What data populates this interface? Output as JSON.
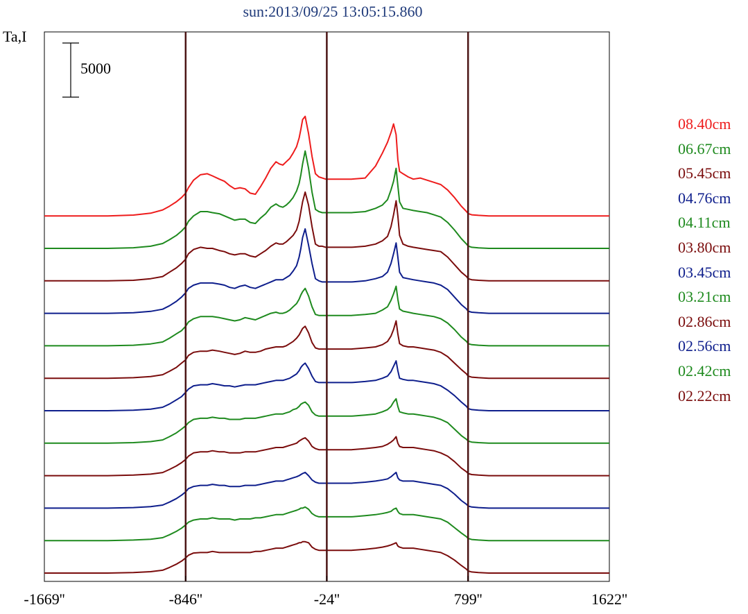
{
  "title": "sun:2013/09/25 13:05:15.860",
  "colors": {
    "red": "#ee1c1c",
    "green": "#1e8a1e",
    "maroon": "#7a0c0c",
    "blue": "#0e1e8c",
    "frame": "#000000",
    "limb": "#4a1414"
  },
  "chart_data": {
    "type": "line",
    "title": "sun:2013/09/25 13:05:15.860",
    "ylabel": "Ta,I",
    "xlabel": "",
    "scale_bar": {
      "label": "5000",
      "value": 5000
    },
    "x_ticks": [
      {
        "value": -1669,
        "label": "-1669''"
      },
      {
        "value": -846,
        "label": "-846''"
      },
      {
        "value": -24,
        "label": "-24''"
      },
      {
        "value": 799,
        "label": "799''"
      },
      {
        "value": 1622,
        "label": "1622''"
      }
    ],
    "xlim": [
      -1669,
      1622
    ],
    "vertical_lines": [
      -846,
      -24,
      799
    ],
    "grid": false,
    "legend_position": "right",
    "x": [
      -1669,
      -1500,
      -1300,
      -1150,
      -1050,
      -980,
      -940,
      -900,
      -870,
      -846,
      -830,
      -800,
      -760,
      -720,
      -690,
      -650,
      -620,
      -590,
      -560,
      -530,
      -500,
      -470,
      -440,
      -410,
      -380,
      -350,
      -320,
      -300,
      -280,
      -260,
      -240,
      -220,
      -200,
      -185,
      -175,
      -165,
      -150,
      -130,
      -110,
      -90,
      -70,
      -50,
      -30,
      -24,
      -10,
      50,
      120,
      200,
      260,
      300,
      330,
      350,
      365,
      380,
      390,
      400,
      420,
      450,
      480,
      520,
      560,
      600,
      640,
      680,
      720,
      760,
      790,
      799,
      820,
      860,
      920,
      1000,
      1100,
      1200,
      1300,
      1400,
      1500,
      1622
    ],
    "series": [
      {
        "name": "08.40cm",
        "color": "#ee1c1c",
        "values": [
          0,
          0,
          0,
          80,
          250,
          550,
          900,
          1300,
          1700,
          2100,
          2600,
          3300,
          3800,
          3900,
          3700,
          3400,
          3200,
          2800,
          2500,
          2600,
          2500,
          2100,
          2000,
          2700,
          3500,
          4400,
          5000,
          4800,
          4700,
          5000,
          5300,
          5800,
          6400,
          7200,
          8000,
          8900,
          9200,
          7600,
          5500,
          3900,
          3600,
          3500,
          3400,
          3400,
          3400,
          3400,
          3400,
          3500,
          4600,
          5800,
          6800,
          7700,
          8500,
          7500,
          5200,
          4100,
          3900,
          3600,
          3400,
          3500,
          3300,
          3100,
          2900,
          2400,
          1700,
          900,
          400,
          220,
          100,
          50,
          0,
          0,
          0,
          0,
          0,
          0,
          0,
          0
        ],
        "offset": 11
      },
      {
        "name": "06.67cm",
        "color": "#1e8a1e",
        "values": [
          0,
          0,
          0,
          60,
          200,
          450,
          800,
          1200,
          1600,
          2000,
          2500,
          3000,
          3400,
          3400,
          3300,
          3200,
          3000,
          2800,
          2600,
          2700,
          2700,
          2400,
          2300,
          2800,
          3200,
          3800,
          4100,
          3900,
          3800,
          4000,
          4300,
          4700,
          5300,
          6000,
          6800,
          7800,
          9000,
          7400,
          5200,
          3600,
          3400,
          3300,
          3300,
          3300,
          3300,
          3300,
          3300,
          3400,
          3700,
          4000,
          4500,
          5400,
          6200,
          7400,
          5800,
          4300,
          3700,
          3600,
          3500,
          3400,
          3300,
          3100,
          2900,
          2400,
          1700,
          900,
          400,
          220,
          100,
          50,
          0,
          0,
          0,
          0,
          0,
          0,
          0,
          0
        ],
        "offset": 10
      },
      {
        "name": "05.45cm",
        "color": "#7a0c0c",
        "values": [
          0,
          0,
          0,
          50,
          200,
          400,
          800,
          1200,
          1600,
          2000,
          2500,
          2900,
          3100,
          3000,
          3000,
          2800,
          2700,
          2500,
          2400,
          2500,
          2500,
          2300,
          2200,
          2500,
          2800,
          3200,
          3500,
          3400,
          3400,
          3600,
          3900,
          4200,
          4700,
          5500,
          6400,
          7300,
          8200,
          7000,
          5000,
          3400,
          3200,
          3200,
          3100,
          3100,
          3100,
          3100,
          3100,
          3200,
          3400,
          3700,
          4100,
          5000,
          6100,
          7400,
          6000,
          4200,
          3400,
          3200,
          3100,
          3000,
          2900,
          2800,
          2700,
          2200,
          1500,
          800,
          400,
          200,
          100,
          50,
          0,
          0,
          0,
          0,
          0,
          0,
          0,
          0
        ],
        "offset": 9
      },
      {
        "name": "04.76cm",
        "color": "#0e1e8c",
        "values": [
          0,
          0,
          0,
          50,
          180,
          380,
          700,
          1100,
          1500,
          1900,
          2300,
          2600,
          2800,
          2800,
          2800,
          2700,
          2600,
          2400,
          2300,
          2500,
          2600,
          2400,
          2300,
          2500,
          2700,
          2900,
          3100,
          3100,
          3100,
          3300,
          3500,
          3900,
          4400,
          5200,
          6000,
          7000,
          7800,
          6300,
          4600,
          3200,
          3000,
          2900,
          2900,
          2900,
          2900,
          2900,
          2900,
          3000,
          3200,
          3400,
          3800,
          4600,
          5500,
          6500,
          5200,
          3800,
          3300,
          3200,
          3100,
          3000,
          2900,
          2800,
          2600,
          2200,
          1500,
          800,
          400,
          200,
          100,
          50,
          0,
          0,
          0,
          0,
          0,
          0,
          0,
          0
        ],
        "offset": 8
      },
      {
        "name": "04.11cm",
        "color": "#1e8a1e",
        "values": [
          0,
          0,
          0,
          50,
          170,
          350,
          700,
          1100,
          1400,
          1800,
          2200,
          2500,
          2700,
          2700,
          2700,
          2600,
          2500,
          2400,
          2300,
          2400,
          2600,
          2500,
          2400,
          2600,
          2800,
          3000,
          3100,
          3000,
          3000,
          3100,
          3300,
          3600,
          3900,
          4300,
          4700,
          5000,
          5300,
          4600,
          3600,
          2900,
          2800,
          2800,
          2800,
          2800,
          2800,
          2800,
          2800,
          2900,
          3000,
          3300,
          3600,
          4200,
          4800,
          5500,
          4300,
          3400,
          3200,
          3100,
          3000,
          2900,
          2800,
          2700,
          2500,
          2100,
          1500,
          800,
          400,
          200,
          100,
          50,
          0,
          0,
          0,
          0,
          0,
          0,
          0,
          0
        ],
        "offset": 7
      },
      {
        "name": "03.80cm",
        "color": "#7a0c0c",
        "values": [
          0,
          0,
          0,
          50,
          160,
          330,
          650,
          1000,
          1400,
          1700,
          2100,
          2400,
          2500,
          2500,
          2600,
          2500,
          2400,
          2300,
          2200,
          2300,
          2500,
          2400,
          2400,
          2500,
          2700,
          2800,
          2900,
          2900,
          2900,
          3000,
          3200,
          3400,
          3700,
          4000,
          4300,
          4600,
          4800,
          4200,
          3300,
          2800,
          2700,
          2700,
          2700,
          2700,
          2700,
          2700,
          2700,
          2800,
          2900,
          3100,
          3400,
          3900,
          4500,
          5300,
          4100,
          3200,
          3000,
          2900,
          2900,
          2800,
          2700,
          2600,
          2400,
          2000,
          1400,
          800,
          400,
          200,
          100,
          50,
          0,
          0,
          0,
          0,
          0,
          0,
          0,
          0
        ],
        "offset": 6
      },
      {
        "name": "03.45cm",
        "color": "#0e1e8c",
        "values": [
          0,
          0,
          0,
          50,
          150,
          320,
          620,
          1000,
          1300,
          1700,
          2000,
          2300,
          2400,
          2400,
          2500,
          2400,
          2300,
          2300,
          2200,
          2300,
          2400,
          2400,
          2400,
          2500,
          2600,
          2700,
          2800,
          2800,
          2800,
          2900,
          3000,
          3200,
          3400,
          3700,
          4000,
          4200,
          4400,
          3900,
          3200,
          2700,
          2600,
          2600,
          2600,
          2600,
          2600,
          2600,
          2600,
          2700,
          2800,
          3000,
          3200,
          3600,
          4100,
          4600,
          3700,
          3000,
          2900,
          2800,
          2800,
          2700,
          2600,
          2500,
          2300,
          1900,
          1400,
          800,
          400,
          200,
          100,
          50,
          0,
          0,
          0,
          0,
          0,
          0,
          0,
          0
        ],
        "offset": 5
      },
      {
        "name": "03.21cm",
        "color": "#1e8a1e",
        "values": [
          0,
          0,
          0,
          50,
          150,
          300,
          600,
          950,
          1300,
          1600,
          1900,
          2200,
          2300,
          2300,
          2400,
          2300,
          2300,
          2200,
          2200,
          2200,
          2300,
          2300,
          2300,
          2400,
          2500,
          2600,
          2700,
          2700,
          2700,
          2800,
          2900,
          3100,
          3200,
          3400,
          3600,
          3700,
          3800,
          3500,
          2900,
          2600,
          2500,
          2500,
          2500,
          2500,
          2500,
          2500,
          2500,
          2600,
          2700,
          2900,
          3100,
          3400,
          3800,
          4100,
          3400,
          2900,
          2800,
          2700,
          2700,
          2600,
          2500,
          2400,
          2200,
          1900,
          1300,
          700,
          350,
          200,
          100,
          50,
          0,
          0,
          0,
          0,
          0,
          0,
          0,
          0
        ],
        "offset": 4
      },
      {
        "name": "02.86cm",
        "color": "#7a0c0c",
        "values": [
          0,
          0,
          0,
          50,
          140,
          290,
          580,
          900,
          1200,
          1500,
          1800,
          2100,
          2200,
          2200,
          2300,
          2200,
          2200,
          2100,
          2100,
          2100,
          2200,
          2200,
          2200,
          2300,
          2400,
          2500,
          2600,
          2600,
          2600,
          2700,
          2800,
          2900,
          3000,
          3200,
          3300,
          3400,
          3500,
          3200,
          2700,
          2500,
          2400,
          2400,
          2400,
          2400,
          2400,
          2400,
          2400,
          2500,
          2600,
          2700,
          2900,
          3100,
          3300,
          3600,
          3000,
          2700,
          2600,
          2600,
          2600,
          2500,
          2400,
          2300,
          2100,
          1800,
          1300,
          700,
          350,
          200,
          100,
          50,
          0,
          0,
          0,
          0,
          0,
          0,
          0,
          0
        ],
        "offset": 3
      },
      {
        "name": "02.56cm",
        "color": "#0e1e8c",
        "values": [
          0,
          0,
          0,
          50,
          140,
          280,
          560,
          880,
          1200,
          1500,
          1800,
          2000,
          2100,
          2100,
          2200,
          2100,
          2100,
          2000,
          2000,
          2000,
          2100,
          2100,
          2100,
          2200,
          2300,
          2400,
          2500,
          2500,
          2500,
          2600,
          2700,
          2800,
          2900,
          3000,
          3100,
          3200,
          3300,
          3000,
          2600,
          2400,
          2300,
          2300,
          2300,
          2300,
          2300,
          2300,
          2300,
          2400,
          2500,
          2600,
          2700,
          2900,
          3100,
          3300,
          2800,
          2600,
          2500,
          2500,
          2500,
          2400,
          2300,
          2200,
          2100,
          1800,
          1300,
          700,
          350,
          200,
          100,
          50,
          0,
          0,
          0,
          0,
          0,
          0,
          0,
          0
        ],
        "offset": 2
      },
      {
        "name": "02.42cm",
        "color": "#1e8a1e",
        "values": [
          0,
          0,
          0,
          50,
          130,
          270,
          540,
          850,
          1150,
          1450,
          1700,
          1900,
          2000,
          2000,
          2100,
          2000,
          2000,
          2000,
          1900,
          2000,
          2000,
          2000,
          2100,
          2100,
          2200,
          2300,
          2400,
          2400,
          2400,
          2500,
          2600,
          2700,
          2800,
          2900,
          3000,
          3000,
          3100,
          2900,
          2500,
          2300,
          2200,
          2200,
          2200,
          2200,
          2200,
          2200,
          2200,
          2300,
          2400,
          2500,
          2600,
          2700,
          2900,
          3000,
          2700,
          2500,
          2400,
          2400,
          2400,
          2300,
          2200,
          2100,
          2000,
          1700,
          1200,
          700,
          350,
          200,
          100,
          50,
          0,
          0,
          0,
          0,
          0,
          0,
          0,
          0
        ],
        "offset": 1
      },
      {
        "name": "02.22cm",
        "color": "#7a0c0c",
        "values": [
          0,
          0,
          0,
          50,
          130,
          260,
          520,
          820,
          1100,
          1400,
          1650,
          1850,
          1900,
          1900,
          2000,
          1900,
          1900,
          1900,
          1900,
          1900,
          1900,
          1900,
          2000,
          2000,
          2100,
          2200,
          2300,
          2300,
          2300,
          2400,
          2500,
          2600,
          2700,
          2800,
          2800,
          2900,
          2900,
          2800,
          2400,
          2200,
          2100,
          2100,
          2100,
          2100,
          2100,
          2100,
          2100,
          2200,
          2300,
          2400,
          2500,
          2600,
          2700,
          2800,
          2500,
          2400,
          2300,
          2300,
          2300,
          2200,
          2100,
          2000,
          1900,
          1600,
          1200,
          700,
          350,
          200,
          100,
          50,
          0,
          0,
          0,
          0,
          0,
          0,
          0,
          0
        ],
        "offset": 0
      }
    ]
  }
}
